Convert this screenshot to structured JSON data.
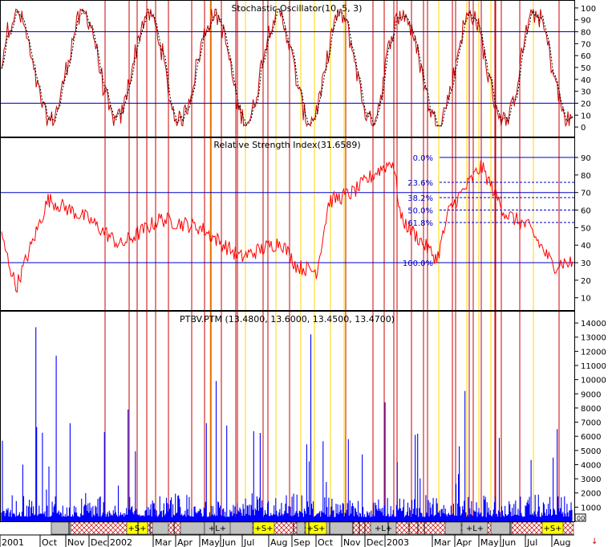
{
  "chart_data": [
    {
      "type": "line",
      "title": "Stochastic Oscillator(10, 5, 3)",
      "ylim": [
        -8,
        106
      ],
      "yticks": [
        0,
        10,
        20,
        30,
        40,
        50,
        60,
        70,
        80,
        90,
        100
      ],
      "reference_lines": [
        20,
        80
      ],
      "series": [
        {
          "key": "k",
          "color": "#cc0000",
          "style": "solid"
        },
        {
          "key": "d",
          "color": "#000000",
          "style": "dashed"
        }
      ]
    },
    {
      "type": "line",
      "title": "Relative Strength Index(31.6589)",
      "ylim": [
        3,
        101
      ],
      "yticks": [
        10,
        20,
        30,
        40,
        50,
        60,
        70,
        80,
        90
      ],
      "reference_lines": [
        30,
        70
      ],
      "fibonacci": {
        "top": 90,
        "bottom": 30,
        "levels": [
          {
            "label": "0.0%",
            "value": 90
          },
          {
            "label": "23.6%",
            "value": 75.8
          },
          {
            "label": "38.2%",
            "value": 67.1
          },
          {
            "label": "50.0%",
            "value": 60
          },
          {
            "label": "61.8%",
            "value": 52.9
          },
          {
            "label": "100.0%",
            "value": 30
          }
        ]
      },
      "series": [
        {
          "key": "rsi",
          "color": "#ff0000"
        }
      ]
    },
    {
      "type": "bar",
      "title": "PTBV.PTM (13.4800, 13.6000, 13.4500, 13.4700)",
      "ylim": [
        0,
        14800
      ],
      "yticks": [
        1000,
        2000,
        3000,
        4000,
        5000,
        6000,
        7000,
        8000,
        9000,
        10000,
        11000,
        12000,
        13000,
        14000
      ],
      "series": [
        {
          "key": "volume",
          "color": "#0000ff"
        }
      ]
    }
  ],
  "x_axis": {
    "labels": [
      "2001",
      "Oct",
      "Nov",
      "Dec",
      "2002",
      "Mar",
      "Apr",
      "May",
      "Jun",
      "Jul",
      "Aug",
      "Sep",
      "Oct",
      "Nov",
      "Dec",
      "2003",
      "Mar",
      "Apr",
      "May",
      "Jun",
      "Jul",
      "Aug"
    ]
  },
  "events": {
    "red_lines": 34,
    "yellow_lines": 12
  },
  "signal_bar": {
    "markers": [
      "+S+",
      "+L+",
      "+S+",
      "+S+",
      "+L+",
      "+L+",
      "+S+"
    ],
    "counter": "00"
  }
}
